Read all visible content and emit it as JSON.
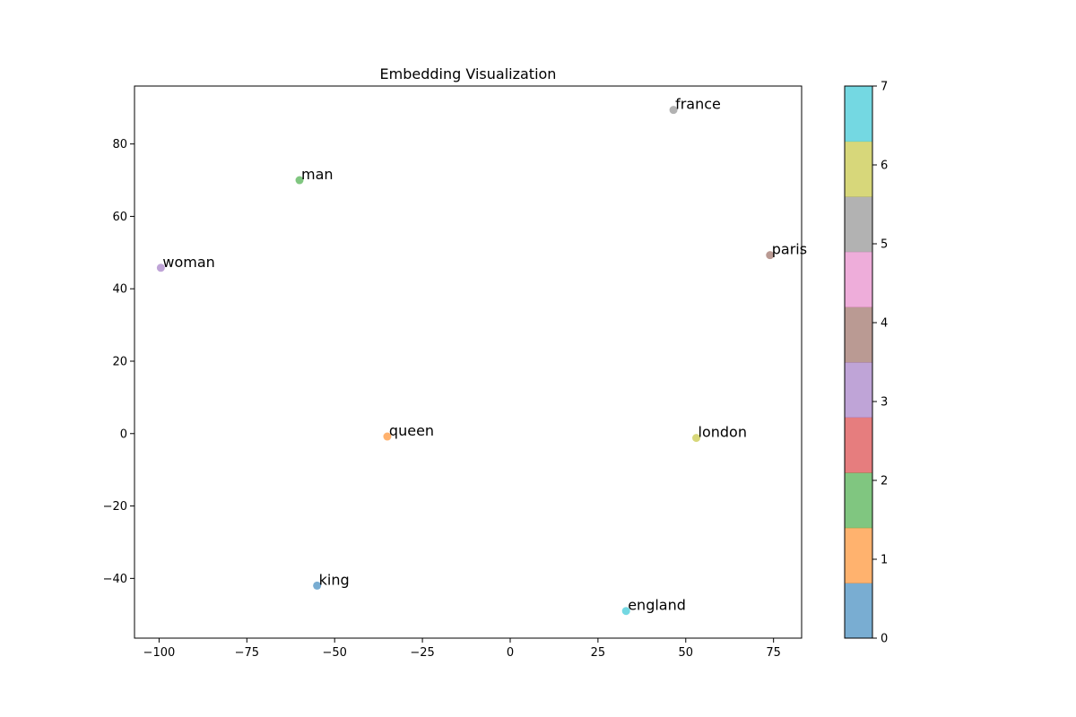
{
  "chart_data": {
    "type": "scatter",
    "title": "Embedding Visualization",
    "xlabel": "",
    "ylabel": "",
    "xlim": [
      -107,
      83
    ],
    "ylim": [
      -56.5,
      96
    ],
    "xticks": [
      -100,
      -75,
      -50,
      -25,
      0,
      25,
      50,
      75
    ],
    "yticks": [
      -40,
      -20,
      0,
      20,
      40,
      60,
      80
    ],
    "grid": false,
    "points": [
      {
        "label": "king",
        "x": -55,
        "y": -42,
        "class": 0
      },
      {
        "label": "queen",
        "x": -35,
        "y": -0.8,
        "class": 1
      },
      {
        "label": "man",
        "x": -60,
        "y": 70,
        "class": 2
      },
      {
        "label": "woman",
        "x": -99.5,
        "y": 45.8,
        "class": 3
      },
      {
        "label": "paris",
        "x": 74,
        "y": 49.3,
        "class": 4
      },
      {
        "label": "france",
        "x": 46.5,
        "y": 89.4,
        "class": 5
      },
      {
        "label": "london",
        "x": 53,
        "y": -1.2,
        "class": 6
      },
      {
        "label": "england",
        "x": 33,
        "y": -49,
        "class": 7
      }
    ],
    "colorbar": {
      "min": 0,
      "max": 7,
      "ticks": [
        0,
        1,
        2,
        3,
        4,
        5,
        6,
        7
      ],
      "colors": [
        "#1f77b4",
        "#ff7f0e",
        "#2ca02c",
        "#d62728",
        "#9467bd",
        "#8c564b",
        "#e377c2",
        "#7f7f7f",
        "#bcbd22",
        "#17becf"
      ],
      "alpha": 0.6
    }
  }
}
